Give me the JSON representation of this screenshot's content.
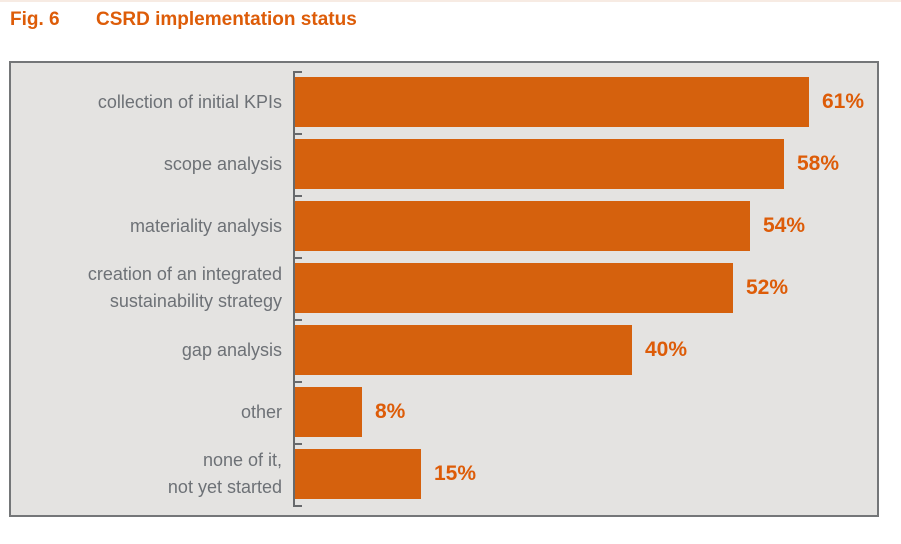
{
  "page": {
    "figure_label": "Fig. 6",
    "title": "CSRD implementation status"
  },
  "chart_data": {
    "type": "bar",
    "orientation": "horizontal",
    "title": "CSRD implementation status",
    "categories": [
      "collection of initial KPIs",
      "scope analysis",
      "materiality analysis",
      "creation of an integrated\nsustainability strategy",
      "gap analysis",
      "other",
      "none of it,\nnot yet started"
    ],
    "values": [
      61,
      58,
      54,
      52,
      40,
      8,
      15
    ],
    "value_labels": [
      "61%",
      "58%",
      "54%",
      "52%",
      "40%",
      "8%",
      "15%"
    ],
    "unit": "%",
    "xlim": [
      0,
      70
    ],
    "grid": false,
    "legend": false,
    "colors": {
      "bar": "#d5610d",
      "value_label": "#dd5c08",
      "category_label": "#6d7176",
      "title": "#dd5c08",
      "panel_background": "#e4e3e1",
      "panel_border": "#747678",
      "axis": "#67696c"
    }
  }
}
